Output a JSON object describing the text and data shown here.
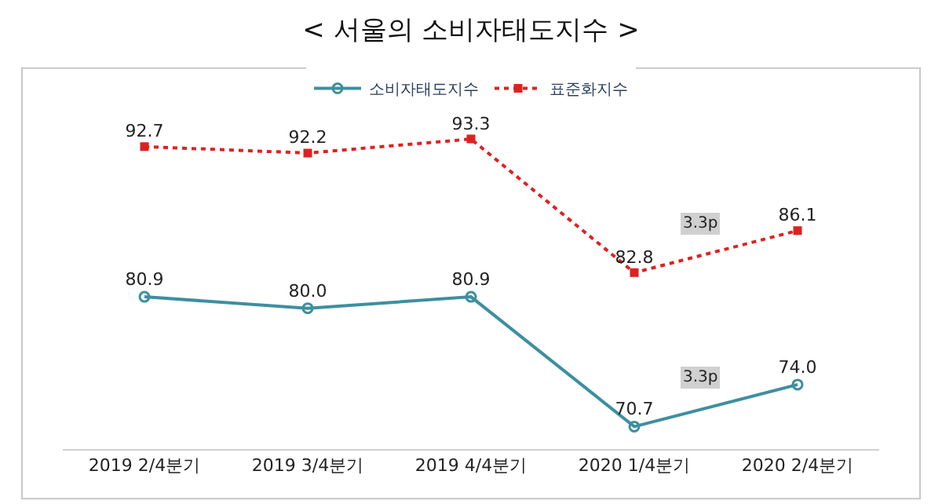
{
  "chart_data": {
    "type": "line",
    "title": "< 서울의 소비자태도지수 >",
    "categories": [
      "2019 2/4분기",
      "2019 3/4분기",
      "2019 4/4분기",
      "2020 1/4분기",
      "2020 2/4분기"
    ],
    "series": [
      {
        "name": "소비자태도지수",
        "color": "#3d8fa0",
        "values": [
          80.9,
          80.0,
          80.9,
          70.7,
          74.0
        ],
        "value_labels": [
          "80.9",
          "80.0",
          "80.9",
          "70.7",
          "74.0"
        ],
        "marker": "circle",
        "line_style": "solid"
      },
      {
        "name": "표준화지수",
        "color": "#e02020",
        "values": [
          92.7,
          92.2,
          93.3,
          82.8,
          86.1
        ],
        "value_labels": [
          "92.7",
          "92.2",
          "93.3",
          "82.8",
          "86.1"
        ],
        "marker": "square",
        "line_style": "dotted"
      }
    ],
    "legend": "top",
    "tick_labels": "x",
    "annotations": [
      "3.3p",
      "3.3p"
    ]
  }
}
